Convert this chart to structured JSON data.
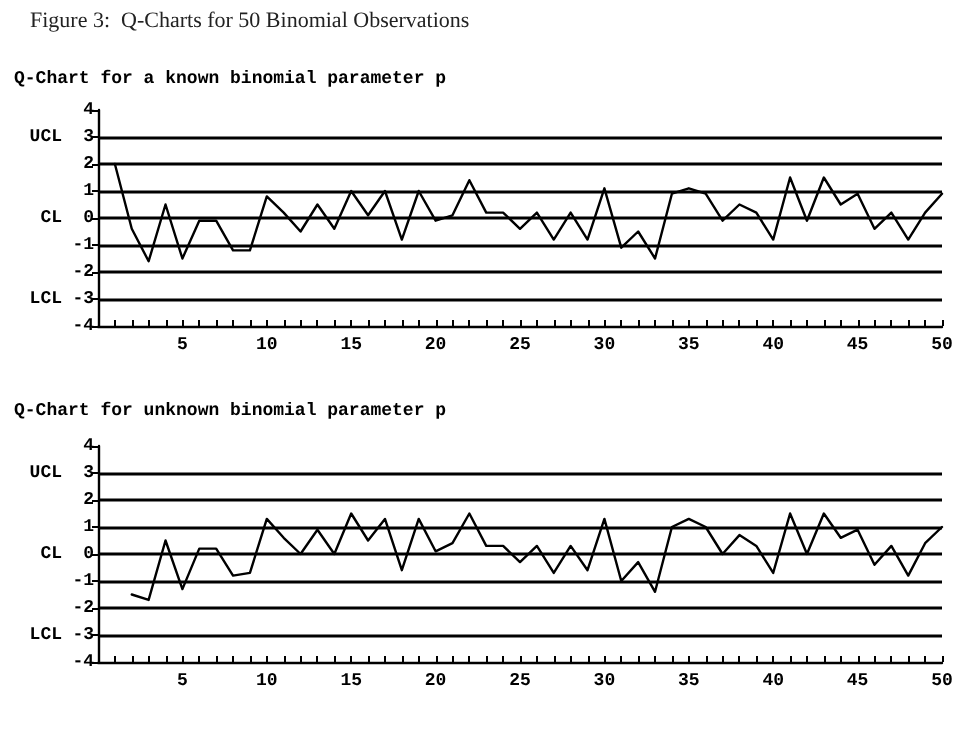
{
  "chart_data": [
    {
      "type": "line",
      "title": "Figure 3:  Q-Charts for 50 Binomial Observations",
      "subtitle": "Q-Chart for a known binomial parameter p",
      "marker": "none",
      "line_style": "solid",
      "x": [
        1,
        2,
        3,
        4,
        5,
        6,
        7,
        8,
        9,
        10,
        11,
        12,
        13,
        14,
        15,
        16,
        17,
        18,
        19,
        20,
        21,
        22,
        23,
        24,
        25,
        26,
        27,
        28,
        29,
        30,
        31,
        32,
        33,
        34,
        35,
        36,
        37,
        38,
        39,
        40,
        41,
        42,
        43,
        44,
        45,
        46,
        47,
        48,
        49,
        50
      ],
      "series": [
        {
          "color": "#000000",
          "values": [
            2.0,
            -0.4,
            -1.6,
            0.5,
            -1.5,
            -0.1,
            -0.1,
            -1.2,
            -1.2,
            0.8,
            0.2,
            -0.5,
            0.5,
            -0.4,
            1.0,
            0.1,
            1.0,
            -0.8,
            1.0,
            -0.1,
            0.1,
            1.4,
            0.2,
            0.2,
            -0.4,
            0.2,
            -0.8,
            0.2,
            -0.8,
            1.1,
            -1.1,
            -0.5,
            -1.5,
            0.9,
            1.1,
            0.9,
            -0.1,
            0.5,
            0.2,
            -0.8,
            1.5,
            -0.1,
            1.5,
            0.5,
            0.9,
            -0.4,
            0.2,
            -0.8,
            0.2,
            0.9
          ]
        }
      ],
      "xlim": [
        0,
        50
      ],
      "xticks": [
        {
          "value": 1,
          "label": null
        },
        {
          "value": 2,
          "label": null
        },
        {
          "value": 3,
          "label": null
        },
        {
          "value": 4,
          "label": null
        },
        5,
        {
          "value": 6,
          "label": null
        },
        {
          "value": 7,
          "label": null
        },
        {
          "value": 8,
          "label": null
        },
        {
          "value": 9,
          "label": null
        },
        10,
        {
          "value": 11,
          "label": null
        },
        {
          "value": 12,
          "label": null
        },
        {
          "value": 13,
          "label": null
        },
        {
          "value": 14,
          "label": null
        },
        15,
        {
          "value": 16,
          "label": null
        },
        {
          "value": 17,
          "label": null
        },
        {
          "value": 18,
          "label": null
        },
        {
          "value": 19,
          "label": null
        },
        20,
        {
          "value": 21,
          "label": null
        },
        {
          "value": 22,
          "label": null
        },
        {
          "value": 23,
          "label": null
        },
        {
          "value": 24,
          "label": null
        },
        25,
        {
          "value": 26,
          "label": null
        },
        {
          "value": 27,
          "label": null
        },
        {
          "value": 28,
          "label": null
        },
        {
          "value": 29,
          "label": null
        },
        30,
        {
          "value": 31,
          "label": null
        },
        {
          "value": 32,
          "label": null
        },
        {
          "value": 33,
          "label": null
        },
        {
          "value": 34,
          "label": null
        },
        35,
        {
          "value": 36,
          "label": null
        },
        {
          "value": 37,
          "label": null
        },
        {
          "value": 38,
          "label": null
        },
        {
          "value": 39,
          "label": null
        },
        40,
        {
          "value": 41,
          "label": null
        },
        {
          "value": 42,
          "label": null
        },
        {
          "value": 43,
          "label": null
        },
        {
          "value": 44,
          "label": null
        },
        45,
        {
          "value": 46,
          "label": null
        },
        {
          "value": 47,
          "label": null
        },
        {
          "value": 48,
          "label": null
        },
        {
          "value": 49,
          "label": null
        },
        50
      ],
      "ylim": [
        -4,
        4
      ],
      "yticks": [
        -4,
        -3,
        -2,
        -1,
        0,
        1,
        2,
        3,
        4
      ],
      "ref_lines": [
        {
          "axis": "y",
          "value": 3,
          "label": "UCL"
        },
        {
          "axis": "y",
          "value": 2,
          "label": null
        },
        {
          "axis": "y",
          "value": 1,
          "label": null
        },
        {
          "axis": "y",
          "value": 0,
          "label": "CL"
        },
        {
          "axis": "y",
          "value": -1,
          "label": null
        },
        {
          "axis": "y",
          "value": -2,
          "label": null
        },
        {
          "axis": "y",
          "value": -3,
          "label": "LCL"
        }
      ]
    },
    {
      "type": "line",
      "title": "Q-Chart for unknown binomial parameter p",
      "marker": "none",
      "line_style": "solid",
      "series": [
        {
          "color": "#000000",
          "x": [
            2,
            3,
            4,
            5,
            6,
            7,
            8,
            9,
            10,
            11,
            12,
            13,
            14,
            15,
            16,
            17,
            18,
            19,
            20,
            21,
            22,
            23,
            24,
            25,
            26,
            27,
            28,
            29,
            30,
            31,
            32,
            33,
            34,
            35,
            36,
            37,
            38,
            39,
            40,
            41,
            42,
            43,
            44,
            45,
            46,
            47,
            48,
            49,
            50
          ],
          "values": [
            -1.5,
            -1.7,
            0.5,
            -1.3,
            0.2,
            0.2,
            -0.8,
            -0.7,
            1.3,
            0.6,
            0.0,
            0.9,
            0.0,
            1.5,
            0.5,
            1.3,
            -0.6,
            1.3,
            0.1,
            0.4,
            1.5,
            0.3,
            0.3,
            -0.3,
            0.3,
            -0.7,
            0.3,
            -0.6,
            1.3,
            -1.0,
            -0.3,
            -1.4,
            1.0,
            1.3,
            1.0,
            0.0,
            0.7,
            0.3,
            -0.7,
            1.5,
            0.0,
            1.5,
            0.6,
            0.9,
            -0.4,
            0.3,
            -0.8,
            0.4,
            1.0
          ]
        }
      ],
      "xlim": [
        0,
        50
      ],
      "xticks": [
        {
          "value": 1,
          "label": null
        },
        {
          "value": 2,
          "label": null
        },
        {
          "value": 3,
          "label": null
        },
        {
          "value": 4,
          "label": null
        },
        5,
        {
          "value": 6,
          "label": null
        },
        {
          "value": 7,
          "label": null
        },
        {
          "value": 8,
          "label": null
        },
        {
          "value": 9,
          "label": null
        },
        10,
        {
          "value": 11,
          "label": null
        },
        {
          "value": 12,
          "label": null
        },
        {
          "value": 13,
          "label": null
        },
        {
          "value": 14,
          "label": null
        },
        15,
        {
          "value": 16,
          "label": null
        },
        {
          "value": 17,
          "label": null
        },
        {
          "value": 18,
          "label": null
        },
        {
          "value": 19,
          "label": null
        },
        20,
        {
          "value": 21,
          "label": null
        },
        {
          "value": 22,
          "label": null
        },
        {
          "value": 23,
          "label": null
        },
        {
          "value": 24,
          "label": null
        },
        25,
        {
          "value": 26,
          "label": null
        },
        {
          "value": 27,
          "label": null
        },
        {
          "value": 28,
          "label": null
        },
        {
          "value": 29,
          "label": null
        },
        30,
        {
          "value": 31,
          "label": null
        },
        {
          "value": 32,
          "label": null
        },
        {
          "value": 33,
          "label": null
        },
        {
          "value": 34,
          "label": null
        },
        35,
        {
          "value": 36,
          "label": null
        },
        {
          "value": 37,
          "label": null
        },
        {
          "value": 38,
          "label": null
        },
        {
          "value": 39,
          "label": null
        },
        40,
        {
          "value": 41,
          "label": null
        },
        {
          "value": 42,
          "label": null
        },
        {
          "value": 43,
          "label": null
        },
        {
          "value": 44,
          "label": null
        },
        45,
        {
          "value": 46,
          "label": null
        },
        {
          "value": 47,
          "label": null
        },
        {
          "value": 48,
          "label": null
        },
        {
          "value": 49,
          "label": null
        },
        50
      ],
      "ylim": [
        -4,
        4
      ],
      "yticks": [
        -4,
        -3,
        -2,
        -1,
        0,
        1,
        2,
        3,
        4
      ],
      "ref_lines": [
        {
          "axis": "y",
          "value": 3,
          "label": "UCL"
        },
        {
          "axis": "y",
          "value": 2,
          "label": null
        },
        {
          "axis": "y",
          "value": 1,
          "label": null
        },
        {
          "axis": "y",
          "value": 0,
          "label": "CL"
        },
        {
          "axis": "y",
          "value": -1,
          "label": null
        },
        {
          "axis": "y",
          "value": -2,
          "label": null
        },
        {
          "axis": "y",
          "value": -3,
          "label": "LCL"
        }
      ]
    }
  ]
}
